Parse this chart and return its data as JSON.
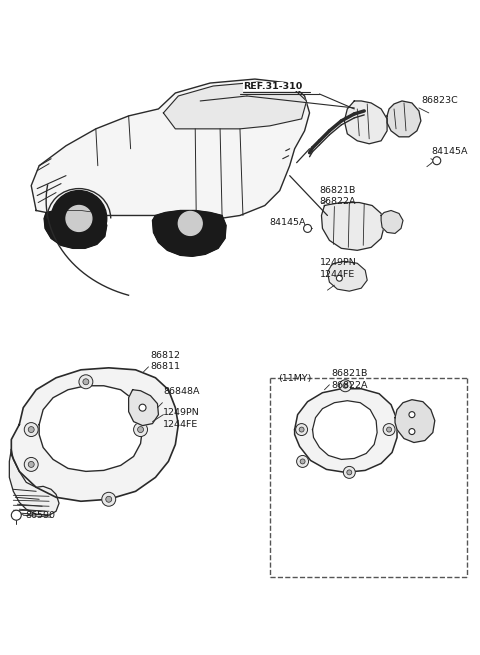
{
  "bg_color": "#ffffff",
  "line_color": "#2a2a2a",
  "text_color": "#1a1a1a",
  "fig_width": 4.8,
  "fig_height": 6.55,
  "dpi": 100,
  "labels": {
    "ref": "REF.31-310",
    "86823C": "86823C",
    "84145A_top": "84145A",
    "86821B_top": "86821B",
    "86822A_top": "86822A",
    "84145A_mid": "84145A",
    "1249PN_top": "1249PN",
    "1244FE_top": "1244FE",
    "86812": "86812",
    "86811": "86811",
    "86848A": "86848A",
    "1249PN_bot": "1249PN",
    "1244FE_bot": "1244FE",
    "86590": "86590",
    "11MY": "(11MY)",
    "86821B_box": "86821B",
    "86822A_box": "86822A"
  }
}
